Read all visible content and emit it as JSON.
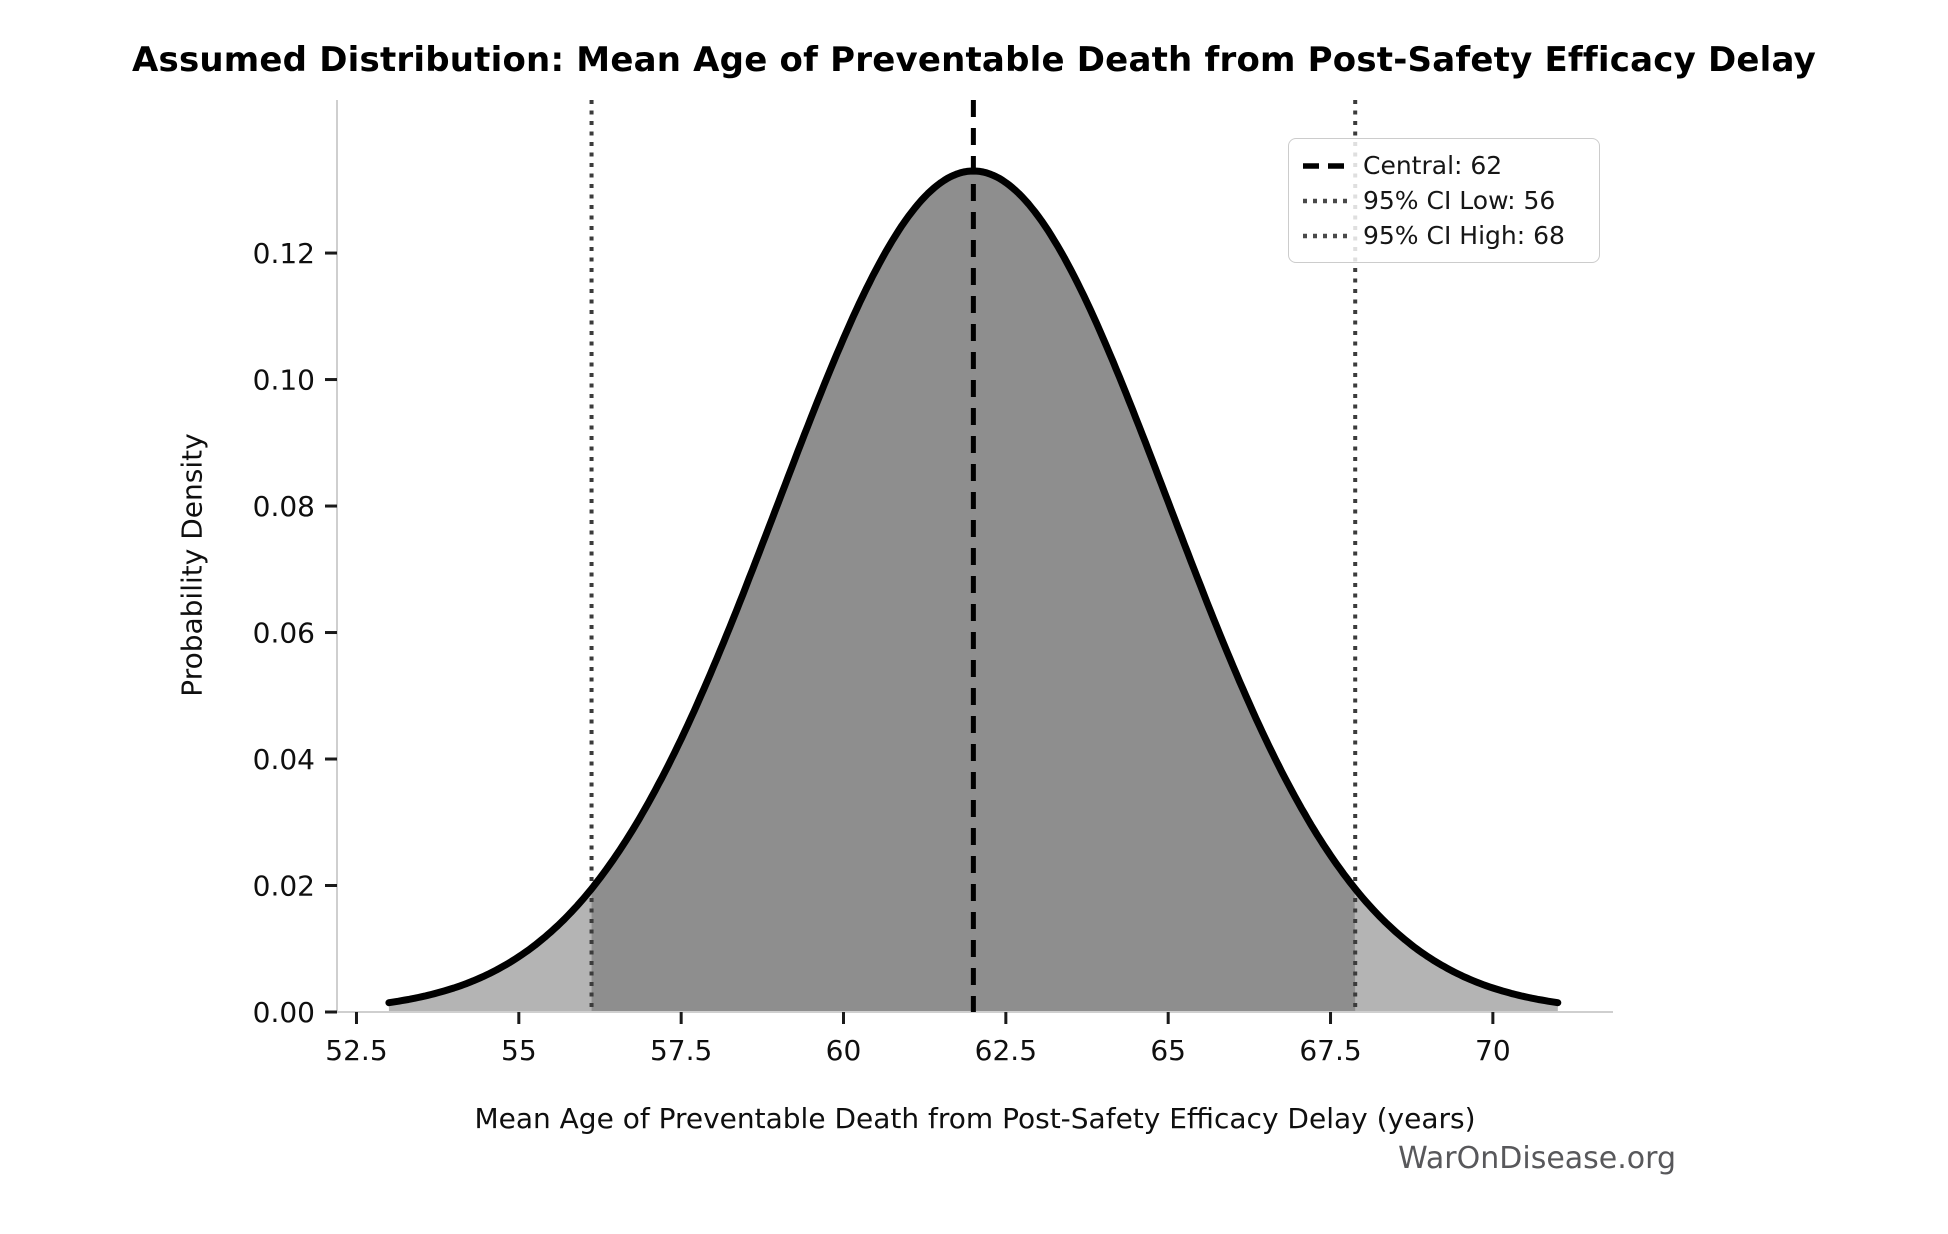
{
  "title": "Assumed Distribution: Mean Age of Preventable Death from Post-Safety Efficacy Delay",
  "watermark": "WarOnDisease.org",
  "chart_data": {
    "type": "area",
    "distribution": "normal",
    "title": "Assumed Distribution: Mean Age of Preventable Death from Post-Safety Efficacy Delay",
    "xlabel": "Mean Age of Preventable Death from Post-Safety Efficacy Delay (years)",
    "ylabel": "Probability Density",
    "mean": 62,
    "sigma": 3,
    "peak_density": 0.133,
    "curve_x_range": [
      53,
      71
    ],
    "central_line_x": 62,
    "ci_low_line_x": 56.12,
    "ci_high_line_x": 67.88,
    "xlim": [
      52.2,
      71.85
    ],
    "ylim": [
      0,
      0.1442
    ],
    "x_ticks": {
      "values": [
        52.5,
        55,
        57.5,
        60,
        62.5,
        65,
        67.5,
        70
      ],
      "labels": [
        "52.5",
        "55",
        "57.5",
        "60",
        "62.5",
        "65",
        "67.5",
        "70"
      ]
    },
    "y_ticks": {
      "values": [
        0.0,
        0.02,
        0.04,
        0.06,
        0.08,
        0.1,
        0.12
      ],
      "labels": [
        "0.00",
        "0.02",
        "0.04",
        "0.06",
        "0.08",
        "0.10",
        "0.12"
      ]
    },
    "grid": false,
    "legend_position": "top-right",
    "legend": [
      {
        "label": "Central: 62",
        "line_style": "dashed",
        "color": "#000000"
      },
      {
        "label": "95% CI Low: 56",
        "line_style": "dotted",
        "color": "#4a4a4a"
      },
      {
        "label": "95% CI High: 68",
        "line_style": "dotted",
        "color": "#4a4a4a"
      }
    ],
    "colors": {
      "curve": "#000000",
      "fill_tail": "#b4b4b4",
      "fill_center": "#8e8e8e",
      "central_line": "#000000",
      "ci_line": "#3b3b3b",
      "spine": "#cfcfcf",
      "tick_mark": "#1a1a1a",
      "tick_label": "#0f0f0f"
    }
  }
}
